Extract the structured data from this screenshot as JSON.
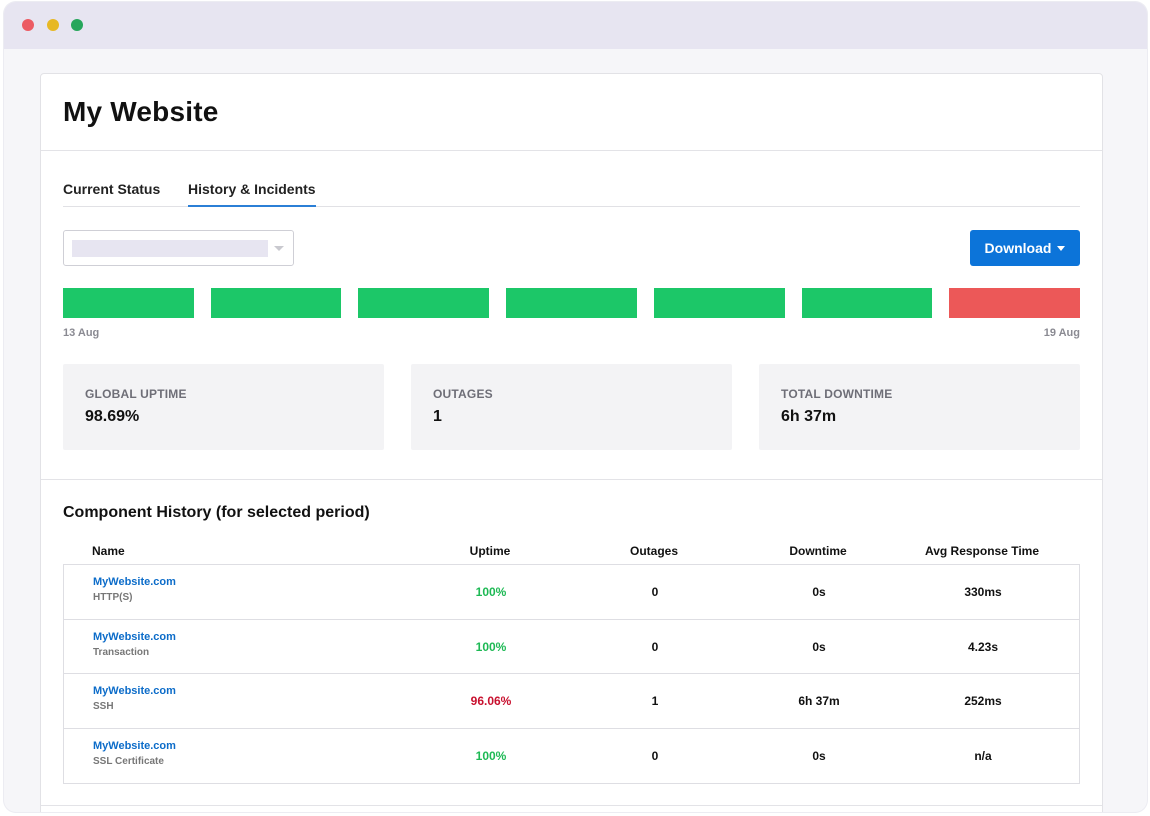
{
  "window": {
    "title": "My Website",
    "colors": {
      "close": "#ec5b63",
      "minimize": "#e7b824",
      "maximize": "#26a65b"
    }
  },
  "tabs": [
    {
      "label": "Current Status",
      "active": false
    },
    {
      "label": "History & Incidents",
      "active": true
    }
  ],
  "period_select": {
    "selected": ""
  },
  "download_button": {
    "label": "Download"
  },
  "history_bars": {
    "days": 7,
    "status": [
      "up",
      "up",
      "up",
      "up",
      "up",
      "up",
      "down"
    ],
    "colors": {
      "up": "#1cc768",
      "down": "#ec5858"
    },
    "start_label": "13 Aug",
    "end_label": "19 Aug"
  },
  "stats": [
    {
      "label": "GLOBAL UPTIME",
      "value": "98.69%"
    },
    {
      "label": "OUTAGES",
      "value": "1"
    },
    {
      "label": "TOTAL DOWNTIME",
      "value": "6h 37m"
    }
  ],
  "component_history": {
    "title": "Component History (for selected period)",
    "columns": [
      "Name",
      "Uptime",
      "Outages",
      "Downtime",
      "Avg Response Time"
    ],
    "rows": [
      {
        "name": "MyWebsite.com",
        "type": "HTTP(S)",
        "uptime": "100%",
        "uptime_status": "ok",
        "outages": "0",
        "downtime": "0s",
        "avg_response": "330ms"
      },
      {
        "name": "MyWebsite.com",
        "type": "Transaction",
        "uptime": "100%",
        "uptime_status": "ok",
        "outages": "0",
        "downtime": "0s",
        "avg_response": "4.23s"
      },
      {
        "name": "MyWebsite.com",
        "type": "SSH",
        "uptime": "96.06%",
        "uptime_status": "degraded",
        "outages": "1",
        "downtime": "6h 37m",
        "avg_response": "252ms"
      },
      {
        "name": "MyWebsite.com",
        "type": "SSL Certificate",
        "uptime": "100%",
        "uptime_status": "ok",
        "outages": "0",
        "downtime": "0s",
        "avg_response": "n/a"
      }
    ],
    "colors": {
      "ok": "#1db954",
      "degraded": "#c8102e",
      "link": "#0c6cc9"
    }
  }
}
